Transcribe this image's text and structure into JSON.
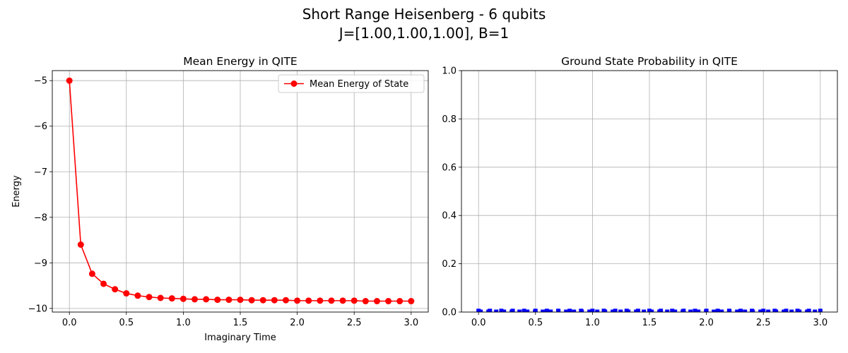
{
  "figure": {
    "suptitle_line1": "Short Range Heisenberg - 6 qubits",
    "suptitle_line2": "J=[1.00,1.00,1.00], B=1"
  },
  "chart_data": [
    {
      "type": "line",
      "title": "Mean Energy in QITE",
      "xlabel": "Imaginary Time",
      "ylabel": "Energy",
      "xlim": [
        -0.15,
        3.15
      ],
      "ylim": [
        -10.08,
        -4.78
      ],
      "xticks": [
        0.0,
        0.5,
        1.0,
        1.5,
        2.0,
        2.5,
        3.0
      ],
      "xtick_labels": [
        "0.0",
        "0.5",
        "1.0",
        "1.5",
        "2.0",
        "2.5",
        "3.0"
      ],
      "yticks": [
        -5,
        -6,
        -7,
        -8,
        -9,
        -10
      ],
      "ytick_labels": [
        "−5",
        "−6",
        "−7",
        "−8",
        "−9",
        "−10"
      ],
      "grid": true,
      "legend_position": "upper right",
      "series": [
        {
          "name": "Mean Energy of State",
          "color": "#ff0000",
          "marker": "circle",
          "x": [
            0.0,
            0.1,
            0.2,
            0.3,
            0.4,
            0.5,
            0.6,
            0.7,
            0.8,
            0.9,
            1.0,
            1.1,
            1.2,
            1.3,
            1.4,
            1.5,
            1.6,
            1.7,
            1.8,
            1.9,
            2.0,
            2.1,
            2.2,
            2.3,
            2.4,
            2.5,
            2.6,
            2.7,
            2.8,
            2.9,
            3.0
          ],
          "y": [
            -5.0,
            -8.6,
            -9.24,
            -9.46,
            -9.58,
            -9.67,
            -9.72,
            -9.75,
            -9.77,
            -9.78,
            -9.79,
            -9.8,
            -9.8,
            -9.81,
            -9.81,
            -9.81,
            -9.82,
            -9.82,
            -9.82,
            -9.82,
            -9.83,
            -9.83,
            -9.83,
            -9.83,
            -9.83,
            -9.83,
            -9.84,
            -9.84,
            -9.84,
            -9.84,
            -9.84
          ]
        }
      ]
    },
    {
      "type": "line",
      "title": "Ground State Probability in QITE",
      "xlabel": "",
      "ylabel": "",
      "xlim": [
        -0.15,
        3.15
      ],
      "ylim": [
        0,
        1
      ],
      "xticks": [
        0.0,
        0.5,
        1.0,
        1.5,
        2.0,
        2.5,
        3.0
      ],
      "xtick_labels": [
        "0.0",
        "0.5",
        "1.0",
        "1.5",
        "2.0",
        "2.5",
        "3.0"
      ],
      "yticks": [
        0.0,
        0.2,
        0.4,
        0.6,
        0.8,
        1.0
      ],
      "ytick_labels": [
        "0.0",
        "0.2",
        "0.4",
        "0.6",
        "0.8",
        "1.0"
      ],
      "grid": true,
      "series": [
        {
          "color": "#0000ff",
          "linestyle": "dashed",
          "marker": "square",
          "x": [
            0.0,
            0.1,
            0.2,
            0.3,
            0.4,
            0.5,
            0.6,
            0.7,
            0.8,
            0.9,
            1.0,
            1.1,
            1.2,
            1.3,
            1.4,
            1.5,
            1.6,
            1.7,
            1.8,
            1.9,
            2.0,
            2.1,
            2.2,
            2.3,
            2.4,
            2.5,
            2.6,
            2.7,
            2.8,
            2.9,
            3.0
          ],
          "y": [
            0.005,
            0.005,
            0.005,
            0.005,
            0.005,
            0.005,
            0.005,
            0.005,
            0.005,
            0.005,
            0.005,
            0.005,
            0.005,
            0.005,
            0.005,
            0.005,
            0.005,
            0.005,
            0.005,
            0.005,
            0.005,
            0.005,
            0.005,
            0.005,
            0.005,
            0.005,
            0.005,
            0.005,
            0.005,
            0.005,
            0.005
          ]
        }
      ]
    }
  ]
}
